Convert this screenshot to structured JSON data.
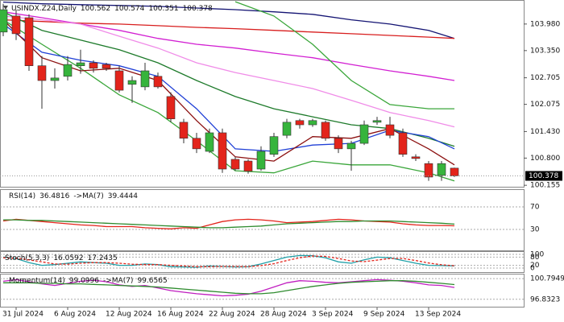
{
  "chart_data": {
    "type": "candlestick",
    "symbol": "USINDX.Z24,Daily",
    "categories": [
      null,
      "31 Jul 2024",
      null,
      null,
      null,
      "6 Aug 2024",
      null,
      null,
      null,
      "12 Aug 2024",
      null,
      null,
      null,
      "16 Aug 2024",
      null,
      null,
      null,
      "22 Aug 2024",
      null,
      null,
      null,
      "28 Aug 2024",
      null,
      null,
      null,
      "3 Sep 2024",
      null,
      null,
      null,
      "9 Sep 2024",
      null,
      null,
      null,
      "13 Sep 2024",
      null,
      null
    ],
    "open": [
      103.79,
      104.17,
      104.13,
      102.99,
      102.64,
      102.74,
      102.99,
      103.06,
      103.02,
      102.87,
      102.55,
      102.49,
      102.74,
      102.26,
      101.65,
      101.27,
      100.96,
      101.4,
      100.77,
      100.73,
      100.54,
      100.89,
      101.34,
      101.69,
      101.59,
      101.65,
      101.27,
      101.02,
      101.15,
      101.65,
      101.59,
      101.4,
      100.83,
      100.67,
      100.39,
      100.562
    ],
    "high": [
      104.46,
      104.32,
      104.21,
      103.22,
      102.93,
      103.22,
      103.37,
      103.12,
      103.06,
      102.99,
      102.74,
      103.06,
      102.83,
      102.36,
      101.73,
      101.4,
      101.5,
      101.5,
      100.83,
      100.77,
      101.08,
      101.4,
      101.73,
      101.73,
      101.73,
      101.69,
      101.34,
      101.21,
      101.69,
      101.78,
      101.78,
      101.5,
      100.89,
      100.73,
      100.73,
      100.574
    ],
    "low": [
      103.69,
      103.6,
      102.87,
      101.97,
      102.45,
      102.64,
      102.8,
      102.83,
      102.87,
      102.36,
      102.11,
      102.41,
      102.45,
      101.65,
      101.15,
      100.92,
      100.92,
      100.45,
      100.5,
      100.43,
      100.5,
      100.83,
      101.27,
      101.5,
      101.54,
      101.21,
      100.92,
      100.5,
      101.11,
      101.59,
      101.27,
      100.83,
      100.73,
      100.26,
      100.26,
      100.351
    ],
    "close": [
      104.32,
      103.75,
      102.99,
      102.64,
      102.7,
      103.02,
      103.06,
      102.93,
      102.93,
      102.41,
      102.64,
      102.87,
      102.49,
      101.73,
      101.27,
      101.02,
      101.4,
      100.54,
      100.54,
      100.49,
      100.96,
      101.31,
      101.65,
      101.59,
      101.69,
      101.27,
      101.02,
      101.15,
      101.59,
      101.69,
      101.34,
      100.89,
      100.79,
      100.35,
      100.67,
      100.378
    ],
    "up_color": "#36b43c",
    "down_color": "#e3241b",
    "ylim": [
      100.12,
      104.55
    ],
    "yticks": [
      {
        "value": 103.98,
        "label": "103.980"
      },
      {
        "value": 103.35,
        "label": "103.350"
      },
      102.705,
      102.075,
      {
        "value": 101.43,
        "label": "101.430"
      },
      {
        "value": 100.8,
        "label": "100.800"
      },
      100.155
    ],
    "overlays": [
      {
        "color": "#141473",
        "x": [
          0,
          3,
          6,
          9,
          12,
          15,
          18,
          21,
          24,
          27,
          30,
          33,
          35
        ],
        "values": [
          104.5,
          104.46,
          104.44,
          104.42,
          104.4,
          104.36,
          104.32,
          104.27,
          104.21,
          104.08,
          103.98,
          103.83,
          103.64
        ]
      },
      {
        "color": "#d81e1e",
        "x": [
          0,
          3,
          6,
          9,
          12,
          15,
          18,
          21,
          24,
          27,
          30,
          33,
          35
        ],
        "values": [
          104.08,
          104.04,
          104.0,
          103.98,
          103.94,
          103.9,
          103.87,
          103.83,
          103.79,
          103.75,
          103.71,
          103.67,
          103.64
        ]
      },
      {
        "color": "#d21fd2",
        "x": [
          0,
          3,
          6,
          9,
          12,
          15,
          18,
          21,
          24,
          27,
          30,
          33,
          35
        ],
        "values": [
          104.27,
          104.13,
          103.98,
          103.83,
          103.64,
          103.5,
          103.41,
          103.29,
          103.18,
          103.02,
          102.87,
          102.74,
          102.64
        ]
      },
      {
        "color": "#f08ce8",
        "x": [
          0,
          3,
          6,
          9,
          12,
          15,
          18,
          21,
          24,
          27,
          30,
          33,
          35
        ],
        "values": [
          104.17,
          104.08,
          103.98,
          103.69,
          103.41,
          103.06,
          102.83,
          102.64,
          102.45,
          102.17,
          101.88,
          101.69,
          101.54
        ]
      },
      {
        "color": "#3aa63a",
        "x": [
          0,
          3,
          6,
          9,
          12,
          15,
          18,
          21,
          24,
          27,
          30,
          33,
          35
        ],
        "values": [
          104.08,
          103.5,
          102.93,
          102.3,
          101.88,
          101.21,
          100.5,
          100.45,
          100.73,
          100.64,
          100.64,
          100.45,
          100.26
        ]
      },
      {
        "color": "#3aa63a",
        "x": [
          0,
          3,
          6,
          9,
          12,
          15,
          18,
          21,
          24,
          27,
          30,
          33,
          35
        ],
        "values": [
          null,
          null,
          null,
          null,
          null,
          null,
          104.51,
          104.17,
          103.5,
          102.64,
          102.07,
          101.97,
          101.97
        ]
      },
      {
        "color": "#1d7a2a",
        "x": [
          0,
          3,
          6,
          9,
          12,
          15,
          18,
          21,
          24,
          27,
          30,
          33,
          35
        ],
        "values": [
          104.27,
          103.83,
          103.6,
          103.37,
          103.06,
          102.64,
          102.26,
          101.97,
          101.78,
          101.59,
          101.5,
          101.27,
          101.08
        ]
      },
      {
        "color": "#1f3fd6",
        "x": [
          0,
          3,
          6,
          9,
          12,
          15,
          18,
          21,
          24,
          27,
          30,
          33,
          35
        ],
        "values": [
          103.98,
          103.31,
          103.12,
          102.99,
          102.74,
          101.97,
          101.02,
          100.96,
          101.11,
          101.15,
          101.46,
          101.31,
          101.02
        ]
      },
      {
        "color": "#8c1010",
        "x": [
          0,
          3,
          6,
          9,
          12,
          15,
          18,
          21,
          24,
          27,
          30,
          33,
          35
        ],
        "values": [
          104.08,
          103.18,
          102.87,
          102.93,
          102.64,
          101.69,
          100.83,
          100.73,
          101.31,
          101.27,
          101.5,
          101.02,
          100.64
        ]
      }
    ],
    "indicators": [
      {
        "ylim": [
          -7.1,
          101.4
        ],
        "yticks": [
          70,
          30
        ],
        "series": [
          {
            "name": "RSI(14)",
            "color": "#e3241b",
            "values": [
              45,
              48,
              46,
              44,
              42,
              40,
              38,
              37,
              35,
              35,
              35,
              33,
              32,
              31,
              33,
              32,
              38,
              44,
              47,
              48,
              47,
              45,
              42,
              43,
              44,
              46,
              48,
              47,
              45,
              44,
              43,
              40,
              38,
              37,
              37,
              36.4816
            ]
          },
          {
            "name": "->MA(7)",
            "color": "#2e8b2e",
            "values": [
              47,
              47,
              46,
              46,
              45,
              44,
              43,
              42,
              41,
              40,
              39,
              38,
              37,
              36,
              35,
              34,
              33,
              33,
              34,
              35,
              36,
              38,
              40,
              41,
              42,
              43,
              44,
              44,
              45,
              45,
              45,
              44,
              43,
              42,
              41,
              39.4444
            ]
          }
        ]
      },
      {
        "title": "Stoch(5,3,3)",
        "ylim": [
          -29.4,
          123.5
        ],
        "yticks": [
          100,
          80,
          20,
          0
        ],
        "series": [
          {
            "color": "#20a0a8",
            "values": [
              80,
              70,
              40,
              20,
              25,
              35,
              45,
              40,
              35,
              20,
              20,
              30,
              25,
              10,
              8,
              6,
              15,
              12,
              8,
              10,
              30,
              55,
              80,
              92,
              90,
              75,
              45,
              35,
              60,
              80,
              75,
              55,
              35,
              20,
              18,
              16.0592
            ]
          },
          {
            "color": "#e3241b",
            "dashed": true,
            "values": [
              75,
              72,
              60,
              45,
              30,
              28,
              35,
              40,
              40,
              35,
              28,
              25,
              25,
              20,
              15,
              10,
              10,
              12,
              12,
              10,
              18,
              32,
              55,
              75,
              88,
              85,
              70,
              52,
              47,
              58,
              70,
              70,
              55,
              37,
              24,
              17.2435
            ]
          }
        ]
      },
      {
        "ylim": [
          95.41,
          101.75
        ],
        "yticks": [
          100.7949,
          96.8323
        ],
        "series": [
          {
            "name": "Momentum(14)",
            "color": "#c01ec0",
            "values": [
              100.3,
              100.6,
              100.2,
              99.8,
              99.5,
              99.9,
              100.3,
              100.5,
              100.2,
              99.6,
              99.3,
              99.5,
              99.0,
              98.5,
              98.2,
              97.9,
              97.7,
              97.5,
              97.6,
              97.8,
              98.4,
              99.2,
              100.0,
              100.4,
              100.3,
              100.1,
              100.0,
              100.2,
              100.4,
              100.6,
              100.5,
              100.3,
              100.0,
              99.6,
              99.5,
              99.0996
            ]
          },
          {
            "name": "->MA(7)",
            "color": "#2e8b2e",
            "values": [
              100.0,
              100.0,
              100.0,
              99.9,
              99.9,
              99.8,
              99.8,
              99.7,
              99.6,
              99.5,
              99.4,
              99.3,
              99.2,
              99.0,
              98.8,
              98.6,
              98.4,
              98.2,
              98.0,
              97.9,
              97.9,
              98.1,
              98.5,
              98.9,
              99.3,
              99.6,
              99.9,
              100.1,
              100.2,
              100.3,
              100.4,
              100.4,
              100.3,
              100.1,
              99.9,
              99.6565
            ]
          }
        ]
      }
    ]
  }
}
